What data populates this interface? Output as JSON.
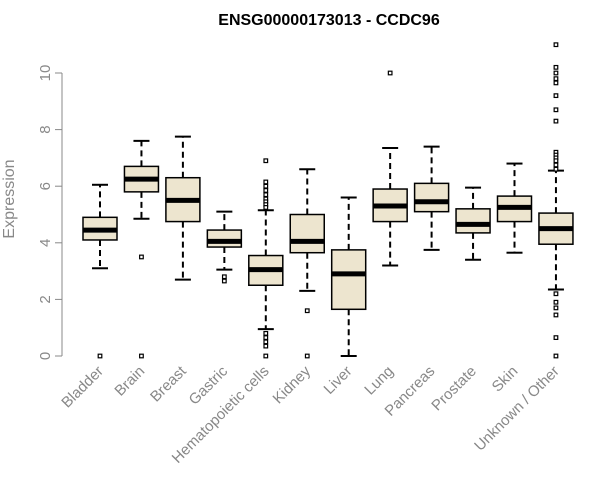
{
  "chart_data": {
    "type": "boxplot",
    "title": "ENSG00000173013 - CCDC96",
    "ylabel": "Expression",
    "xlabel": "",
    "ylim": [
      0,
      11
    ],
    "yticks": [
      0,
      2,
      4,
      6,
      8,
      10
    ],
    "box_fill": "#ede5cf",
    "categories": [
      "Bladder",
      "Brain",
      "Breast",
      "Gastric",
      "Hematopoietic cells",
      "Kidney",
      "Liver",
      "Lung",
      "Pancreas",
      "Prostate",
      "Skin",
      "Unknown / Other"
    ],
    "boxes": [
      {
        "whisker_low": 3.1,
        "q1": 4.1,
        "median": 4.45,
        "q3": 4.9,
        "whisker_high": 6.05,
        "outliers": [
          0
        ]
      },
      {
        "whisker_low": 4.85,
        "q1": 5.8,
        "median": 6.25,
        "q3": 6.7,
        "whisker_high": 7.6,
        "outliers": [
          3.5,
          0
        ]
      },
      {
        "whisker_low": 2.7,
        "q1": 4.75,
        "median": 5.5,
        "q3": 6.3,
        "whisker_high": 7.75,
        "outliers": []
      },
      {
        "whisker_low": 3.05,
        "q1": 3.85,
        "median": 4.05,
        "q3": 4.45,
        "whisker_high": 5.1,
        "outliers": [
          2.8,
          2.65
        ]
      },
      {
        "whisker_low": 0.95,
        "q1": 2.5,
        "median": 3.05,
        "q3": 3.55,
        "whisker_high": 5.15,
        "outliers": [
          6.9,
          6.15,
          6.0,
          5.85,
          5.7,
          5.55,
          5.45,
          5.35,
          5.25,
          0.8,
          0.65,
          0.5,
          0.35,
          0
        ]
      },
      {
        "whisker_low": 2.3,
        "q1": 3.65,
        "median": 4.05,
        "q3": 5.0,
        "whisker_high": 6.6,
        "outliers": [
          1.6,
          0
        ]
      },
      {
        "whisker_low": 0.0,
        "q1": 1.65,
        "median": 2.9,
        "q3": 3.75,
        "whisker_high": 5.6,
        "outliers": []
      },
      {
        "whisker_low": 3.2,
        "q1": 4.75,
        "median": 5.3,
        "q3": 5.9,
        "whisker_high": 7.35,
        "outliers": [
          10.0
        ]
      },
      {
        "whisker_low": 3.75,
        "q1": 5.1,
        "median": 5.45,
        "q3": 6.1,
        "whisker_high": 7.4,
        "outliers": []
      },
      {
        "whisker_low": 3.4,
        "q1": 4.35,
        "median": 4.65,
        "q3": 5.2,
        "whisker_high": 5.95,
        "outliers": []
      },
      {
        "whisker_low": 3.65,
        "q1": 4.75,
        "median": 5.25,
        "q3": 5.65,
        "whisker_high": 6.8,
        "outliers": []
      },
      {
        "whisker_low": 2.35,
        "q1": 3.95,
        "median": 4.5,
        "q3": 5.05,
        "whisker_high": 6.55,
        "outliers": [
          11.0,
          10.2,
          10.0,
          9.8,
          9.65,
          9.2,
          8.7,
          8.3,
          7.2,
          7.1,
          7.0,
          6.9,
          6.75,
          6.6,
          2.2,
          1.9,
          1.7,
          1.45,
          0.65,
          0
        ]
      }
    ]
  }
}
